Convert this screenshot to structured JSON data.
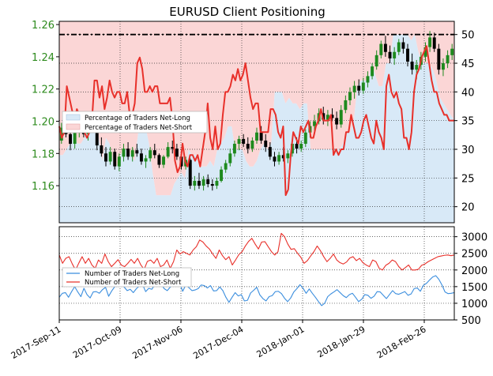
{
  "chart_data": [
    {
      "type": "candlestick+line",
      "title": "EURUSD Client Positioning",
      "left_axis": {
        "ticks": [
          "1.16",
          "1.18",
          "1.20",
          "1.22",
          "1.24",
          "1.26"
        ],
        "values": [
          1.16,
          1.18,
          1.2,
          1.22,
          1.24,
          1.26
        ],
        "ylim": [
          1.137,
          1.262
        ]
      },
      "right_axis": {
        "ticks": [
          "20",
          "25",
          "30",
          "35",
          "40",
          "45",
          "50"
        ],
        "values": [
          20,
          25,
          30,
          35,
          40,
          45,
          50
        ],
        "ylim": [
          17.2,
          52.3
        ]
      },
      "x_ticks": [
        "2017-Sep-11",
        "2017-Oct-09",
        "2017-Nov-06",
        "2017-Dec-04",
        "2018-Jan-01",
        "2018-Jan-29",
        "2018-Feb-26"
      ],
      "reference_line": 50,
      "legend": {
        "position": "upper-left",
        "entries": [
          "Percentage of Traders Net-Long",
          "Percentage of Traders Net-Short"
        ]
      },
      "colors": {
        "net_long_fill": "#d8e9f7",
        "net_short_fill": "#fbd6d6",
        "candle_up": "#1e8a1e",
        "candle_down": "#000000",
        "line": "#e8302a"
      },
      "candles": [
        [
          1.188,
          1.199,
          1.186,
          1.196
        ],
        [
          1.196,
          1.2,
          1.19,
          1.192
        ],
        [
          1.192,
          1.196,
          1.182,
          1.186
        ],
        [
          1.186,
          1.196,
          1.183,
          1.193
        ],
        [
          1.193,
          1.199,
          1.19,
          1.195
        ],
        [
          1.195,
          1.198,
          1.19,
          1.192
        ],
        [
          1.192,
          1.199,
          1.188,
          1.196
        ],
        [
          1.196,
          1.202,
          1.193,
          1.195
        ],
        [
          1.195,
          1.197,
          1.182,
          1.185
        ],
        [
          1.185,
          1.19,
          1.178,
          1.18
        ],
        [
          1.18,
          1.184,
          1.172,
          1.175
        ],
        [
          1.175,
          1.184,
          1.173,
          1.181
        ],
        [
          1.181,
          1.183,
          1.17,
          1.172
        ],
        [
          1.172,
          1.18,
          1.169,
          1.178
        ],
        [
          1.178,
          1.186,
          1.175,
          1.183
        ],
        [
          1.183,
          1.187,
          1.176,
          1.178
        ],
        [
          1.178,
          1.184,
          1.175,
          1.182
        ],
        [
          1.182,
          1.186,
          1.178,
          1.18
        ],
        [
          1.18,
          1.183,
          1.173,
          1.175
        ],
        [
          1.175,
          1.179,
          1.171,
          1.177
        ],
        [
          1.177,
          1.184,
          1.175,
          1.182
        ],
        [
          1.182,
          1.186,
          1.177,
          1.179
        ],
        [
          1.179,
          1.18,
          1.171,
          1.173
        ],
        [
          1.173,
          1.179,
          1.171,
          1.178
        ],
        [
          1.178,
          1.187,
          1.177,
          1.184
        ],
        [
          1.184,
          1.188,
          1.18,
          1.183
        ],
        [
          1.183,
          1.186,
          1.176,
          1.178
        ],
        [
          1.178,
          1.18,
          1.17,
          1.172
        ],
        [
          1.172,
          1.178,
          1.17,
          1.176
        ],
        [
          1.176,
          1.177,
          1.158,
          1.16
        ],
        [
          1.16,
          1.166,
          1.157,
          1.163
        ],
        [
          1.163,
          1.168,
          1.158,
          1.16
        ],
        [
          1.16,
          1.166,
          1.157,
          1.164
        ],
        [
          1.164,
          1.167,
          1.159,
          1.161
        ],
        [
          1.161,
          1.164,
          1.157,
          1.16
        ],
        [
          1.16,
          1.165,
          1.158,
          1.163
        ],
        [
          1.163,
          1.172,
          1.162,
          1.17
        ],
        [
          1.17,
          1.176,
          1.168,
          1.174
        ],
        [
          1.174,
          1.183,
          1.172,
          1.18
        ],
        [
          1.18,
          1.188,
          1.178,
          1.186
        ],
        [
          1.186,
          1.191,
          1.182,
          1.189
        ],
        [
          1.189,
          1.192,
          1.184,
          1.186
        ],
        [
          1.186,
          1.19,
          1.18,
          1.183
        ],
        [
          1.183,
          1.19,
          1.181,
          1.188
        ],
        [
          1.188,
          1.196,
          1.186,
          1.193
        ],
        [
          1.193,
          1.197,
          1.186,
          1.188
        ],
        [
          1.188,
          1.192,
          1.181,
          1.184
        ],
        [
          1.184,
          1.187,
          1.176,
          1.178
        ],
        [
          1.178,
          1.181,
          1.172,
          1.175
        ],
        [
          1.175,
          1.181,
          1.173,
          1.179
        ],
        [
          1.179,
          1.184,
          1.175,
          1.177
        ],
        [
          1.177,
          1.182,
          1.174,
          1.18
        ],
        [
          1.18,
          1.188,
          1.178,
          1.186
        ],
        [
          1.186,
          1.19,
          1.18,
          1.183
        ],
        [
          1.183,
          1.188,
          1.181,
          1.186
        ],
        [
          1.186,
          1.195,
          1.184,
          1.193
        ],
        [
          1.193,
          1.2,
          1.19,
          1.197
        ],
        [
          1.197,
          1.204,
          1.192,
          1.2
        ],
        [
          1.2,
          1.208,
          1.198,
          1.205
        ],
        [
          1.205,
          1.209,
          1.198,
          1.201
        ],
        [
          1.201,
          1.207,
          1.197,
          1.204
        ],
        [
          1.204,
          1.208,
          1.2,
          1.202
        ],
        [
          1.202,
          1.206,
          1.195,
          1.198
        ],
        [
          1.198,
          1.21,
          1.196,
          1.207
        ],
        [
          1.207,
          1.216,
          1.205,
          1.213
        ],
        [
          1.213,
          1.221,
          1.21,
          1.218
        ],
        [
          1.218,
          1.225,
          1.214,
          1.222
        ],
        [
          1.222,
          1.226,
          1.216,
          1.219
        ],
        [
          1.219,
          1.227,
          1.217,
          1.224
        ],
        [
          1.224,
          1.231,
          1.221,
          1.228
        ],
        [
          1.228,
          1.236,
          1.226,
          1.234
        ],
        [
          1.234,
          1.244,
          1.232,
          1.241
        ],
        [
          1.241,
          1.25,
          1.239,
          1.248
        ],
        [
          1.248,
          1.253,
          1.24,
          1.243
        ],
        [
          1.243,
          1.247,
          1.236,
          1.239
        ],
        [
          1.239,
          1.246,
          1.235,
          1.243
        ],
        [
          1.243,
          1.251,
          1.241,
          1.249
        ],
        [
          1.249,
          1.252,
          1.242,
          1.245
        ],
        [
          1.245,
          1.248,
          1.234,
          1.237
        ],
        [
          1.237,
          1.242,
          1.229,
          1.232
        ],
        [
          1.232,
          1.238,
          1.226,
          1.235
        ],
        [
          1.235,
          1.243,
          1.232,
          1.24
        ],
        [
          1.24,
          1.249,
          1.237,
          1.246
        ],
        [
          1.246,
          1.256,
          1.243,
          1.252
        ],
        [
          1.252,
          1.255,
          1.243,
          1.245
        ],
        [
          1.245,
          1.248,
          1.229,
          1.232
        ],
        [
          1.232,
          1.239,
          1.228,
          1.236
        ],
        [
          1.236,
          1.244,
          1.233,
          1.241
        ],
        [
          1.241,
          1.248,
          1.238,
          1.245
        ]
      ],
      "series": [
        {
          "name": "Percentage of Traders Net-Long",
          "axis": "right",
          "values": [
            29,
            29,
            30,
            31,
            34,
            31,
            31,
            32,
            34,
            35,
            36,
            32,
            28,
            32,
            31,
            28,
            27,
            29,
            30,
            30,
            29,
            28,
            33,
            33,
            34,
            31,
            26,
            22,
            22,
            22,
            22,
            22,
            24,
            25,
            26,
            25,
            30,
            29,
            29,
            27,
            27,
            27,
            28,
            27,
            30,
            31,
            32,
            34,
            34,
            30,
            30,
            30,
            28,
            27,
            27,
            28,
            30,
            31,
            30,
            31,
            40,
            40,
            40,
            38,
            39,
            38,
            38,
            37,
            38,
            38,
            30,
            30,
            30,
            30,
            30,
            30,
            30,
            30,
            30,
            31,
            33,
            33,
            35,
            41,
            42,
            42,
            42,
            45,
            43,
            41,
            41,
            45,
            45,
            50,
            50,
            50,
            50,
            50,
            49,
            50,
            47,
            45,
            45,
            45,
            44,
            42,
            39,
            38,
            37,
            36,
            35
          ]
        },
        {
          "name": "Percentage of Traders Net-Short",
          "axis": "right",
          "values": [
            34,
            32,
            33,
            41,
            39,
            37,
            35,
            37,
            36,
            33,
            33,
            32,
            33,
            35,
            42,
            42,
            39,
            41,
            37,
            39,
            42,
            40,
            39,
            40,
            40,
            38,
            38,
            40,
            36,
            36,
            38,
            45,
            46,
            44,
            40,
            40,
            41,
            40,
            41,
            41,
            38,
            38,
            38,
            38,
            39,
            35,
            28,
            26,
            27,
            31,
            28,
            27,
            29,
            29,
            28,
            29,
            27,
            30,
            33,
            38,
            32,
            30,
            34,
            30,
            31,
            36,
            40,
            40,
            41,
            43,
            42,
            44,
            42,
            43,
            45,
            42,
            39,
            37,
            38,
            38,
            33,
            33,
            33,
            33,
            37,
            37,
            36,
            33,
            32,
            34,
            22,
            23,
            29,
            33,
            32,
            31,
            34,
            33,
            34,
            35,
            32,
            32,
            34,
            35,
            37,
            35,
            35,
            35,
            36,
            29,
            30,
            29,
            30,
            30,
            33,
            33,
            36,
            34,
            32,
            32,
            33,
            35,
            36,
            34,
            32,
            31,
            35,
            33,
            32,
            30,
            41,
            43,
            40,
            39,
            40,
            38,
            37,
            32,
            32,
            30,
            33,
            40,
            43,
            44,
            46,
            47,
            48,
            45,
            42,
            40,
            40,
            38,
            37,
            36,
            36,
            35,
            35,
            35
          ]
        }
      ]
    },
    {
      "type": "line",
      "y_ticks": [
        "500",
        "1000",
        "1500",
        "2000",
        "2500",
        "3000"
      ],
      "y_values": [
        500,
        1000,
        1500,
        2000,
        2500,
        3000
      ],
      "ylim": [
        500,
        3300
      ],
      "legend": {
        "position": "upper-left",
        "entries": [
          "Number of Traders Net-Long",
          "Number of Traders Net-Short"
        ]
      },
      "series": [
        {
          "name": "Number of Traders Net-Long",
          "color": "#3b8ede",
          "values": [
            1180,
            1300,
            1320,
            1180,
            1350,
            1500,
            1340,
            1200,
            1450,
            1260,
            1160,
            1340,
            1350,
            1300,
            1410,
            1480,
            1210,
            1370,
            1500,
            1570,
            1530,
            1490,
            1380,
            1420,
            1320,
            1440,
            1520,
            1560,
            1350,
            1450,
            1420,
            1560,
            1610,
            1580,
            1440,
            1380,
            1490,
            1560,
            1650,
            1600,
            1360,
            1550,
            1470,
            1380,
            1400,
            1440,
            1550,
            1530,
            1460,
            1530,
            1370,
            1380,
            1490,
            1380,
            1180,
            1030,
            1180,
            1320,
            1220,
            1260,
            1070,
            1090,
            1310,
            1390,
            1480,
            1250,
            1140,
            1070,
            1200,
            1230,
            1350,
            1360,
            1290,
            1150,
            1050,
            1160,
            1340,
            1440,
            1560,
            1450,
            1300,
            1430,
            1300,
            1180,
            1050,
            930,
            1000,
            1200,
            1280,
            1340,
            1410,
            1320,
            1230,
            1170,
            1260,
            1300,
            1180,
            1050,
            1120,
            1260,
            1240,
            1150,
            1210,
            1350,
            1340,
            1240,
            1140,
            1260,
            1380,
            1290,
            1270,
            1310,
            1350,
            1240,
            1280,
            1440,
            1460,
            1360,
            1540,
            1600,
            1700,
            1790,
            1830,
            1720,
            1550,
            1340,
            1290,
            1300,
            1320
          ]
        },
        {
          "name": "Number of Traders Net-Short",
          "color": "#e8302a",
          "values": [
            2450,
            2200,
            2350,
            2400,
            2180,
            2000,
            2210,
            2400,
            2200,
            2350,
            2150,
            2050,
            2300,
            2200,
            2480,
            2250,
            2100,
            2200,
            2310,
            2150,
            2100,
            2200,
            2320,
            2200,
            2350,
            2150,
            2020,
            2260,
            2300,
            2200,
            2350,
            2100,
            2150,
            2300,
            2050,
            2250,
            2600,
            2480,
            2550,
            2500,
            2450,
            2600,
            2700,
            2900,
            2840,
            2720,
            2630,
            2480,
            2350,
            2600,
            2430,
            2310,
            2400,
            2150,
            2300,
            2460,
            2550,
            2720,
            2860,
            2950,
            2780,
            2630,
            2840,
            2850,
            2700,
            2550,
            2450,
            2550,
            3100,
            3000,
            2780,
            2620,
            2640,
            2500,
            2380,
            2200,
            2280,
            2420,
            2550,
            2720,
            2580,
            2400,
            2250,
            2350,
            2480,
            2300,
            2220,
            2180,
            2240,
            2360,
            2400,
            2280,
            2350,
            2220,
            2150,
            2100,
            2300,
            2250,
            2050,
            2000,
            2140,
            2200,
            2300,
            2250,
            2100,
            2000,
            2070,
            2150,
            2000,
            2000,
            2020,
            2140,
            2180,
            2250,
            2300,
            2350,
            2400,
            2420,
            2440,
            2450,
            2430,
            2450
          ]
        }
      ]
    }
  ]
}
